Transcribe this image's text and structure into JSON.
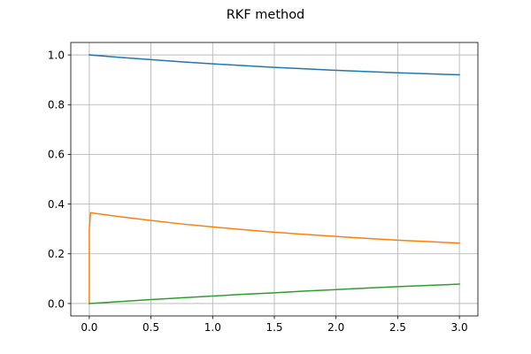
{
  "chart_data": {
    "type": "line",
    "title": "RKF method",
    "xlabel": "",
    "ylabel": "",
    "xlim": [
      -0.15,
      3.15
    ],
    "ylim": [
      -0.05,
      1.05
    ],
    "grid": true,
    "xticks": [
      0.0,
      0.5,
      1.0,
      1.5,
      2.0,
      2.5,
      3.0
    ],
    "xtick_labels": [
      "0.0",
      "0.5",
      "1.0",
      "1.5",
      "2.0",
      "2.5",
      "3.0"
    ],
    "yticks": [
      0.0,
      0.2,
      0.4,
      0.6,
      0.8,
      1.0
    ],
    "ytick_labels": [
      "0.0",
      "0.2",
      "0.4",
      "0.6",
      "0.8",
      "1.0"
    ],
    "series": [
      {
        "color": "#1f77b4",
        "x": [
          0.0,
          0.25,
          0.5,
          0.75,
          1.0,
          1.25,
          1.5,
          1.75,
          2.0,
          2.25,
          2.5,
          2.75,
          3.0
        ],
        "y": [
          1.0,
          0.99,
          0.981,
          0.972,
          0.964,
          0.957,
          0.95,
          0.944,
          0.938,
          0.933,
          0.928,
          0.924,
          0.92
        ]
      },
      {
        "color": "#ff7f0e",
        "x": [
          0.0,
          0.0,
          0.01,
          0.25,
          0.5,
          0.75,
          1.0,
          1.25,
          1.5,
          1.75,
          2.0,
          2.25,
          2.5,
          2.75,
          3.0
        ],
        "y": [
          0.0,
          0.3,
          0.365,
          0.349,
          0.334,
          0.32,
          0.308,
          0.297,
          0.287,
          0.278,
          0.27,
          0.262,
          0.255,
          0.249,
          0.243
        ]
      },
      {
        "color": "#2ca02c",
        "x": [
          0.0,
          0.25,
          0.5,
          0.75,
          1.0,
          1.25,
          1.5,
          1.75,
          2.0,
          2.25,
          2.5,
          2.75,
          3.0
        ],
        "y": [
          0.0,
          0.008,
          0.016,
          0.023,
          0.03,
          0.037,
          0.043,
          0.05,
          0.056,
          0.062,
          0.068,
          0.073,
          0.078
        ]
      }
    ]
  }
}
